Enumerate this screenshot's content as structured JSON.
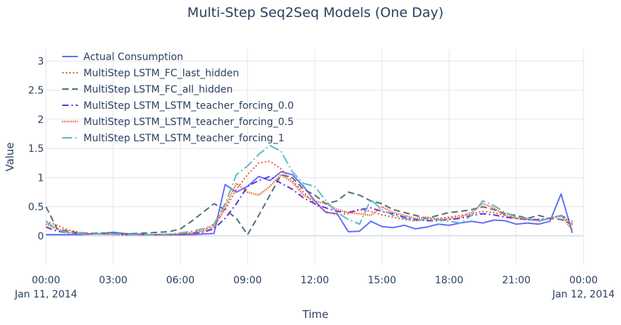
{
  "chart_data": {
    "type": "line",
    "title": "Multi-Step Seq2Seq Models (One Day)",
    "xlabel": "Time",
    "ylabel": "Value",
    "xlim": [
      "2014-01-11 00:00",
      "2014-01-12 00:00"
    ],
    "ylim": [
      -0.5,
      3.2
    ],
    "grid": true,
    "legend_position": "top-left",
    "x_ticks": [
      "00:00",
      "03:00",
      "06:00",
      "09:00",
      "12:00",
      "15:00",
      "18:00",
      "21:00",
      "00:00"
    ],
    "x_tick_dates": [
      "Jan 11, 2014",
      "",
      "",
      "",
      "",
      "",
      "",
      "",
      "Jan 12, 2014"
    ],
    "y_ticks": [
      "0",
      "0.5",
      "1",
      "1.5",
      "2",
      "2.5",
      "3"
    ],
    "y_tick_values": [
      0,
      0.5,
      1,
      1.5,
      2,
      2.5,
      3
    ],
    "x_hours": [
      0,
      0.5,
      1,
      1.5,
      2,
      2.5,
      3,
      3.5,
      4,
      4.5,
      5,
      5.5,
      6,
      6.5,
      7,
      7.5,
      8,
      8.5,
      9,
      9.5,
      10,
      10.5,
      11,
      11.5,
      12,
      12.5,
      13,
      13.5,
      14,
      14.5,
      15,
      15.5,
      16,
      16.5,
      17,
      17.5,
      18,
      18.5,
      19,
      19.5,
      20,
      20.5,
      21,
      21.5,
      22,
      22.5,
      23,
      23.5
    ],
    "series": [
      {
        "name": "Actual Consumption",
        "color": "#636efa",
        "dash": "solid",
        "values": [
          0.02,
          0.02,
          0.02,
          0.02,
          0.03,
          0.04,
          0.06,
          0.04,
          0.03,
          0.02,
          0.02,
          0.02,
          0.02,
          0.02,
          0.03,
          0.04,
          0.88,
          0.75,
          0.85,
          1.02,
          0.95,
          1.1,
          1.05,
          0.85,
          0.6,
          0.4,
          0.38,
          0.07,
          0.08,
          0.25,
          0.16,
          0.14,
          0.18,
          0.12,
          0.15,
          0.2,
          0.18,
          0.22,
          0.25,
          0.22,
          0.27,
          0.26,
          0.2,
          0.22,
          0.2,
          0.25,
          0.72,
          0.05
        ]
      },
      {
        "name": "MultiStep LSTM_FC_last_hidden",
        "color": "#ef553b",
        "dash": "dot",
        "values": [
          0.25,
          0.18,
          0.1,
          0.06,
          0.04,
          0.03,
          0.03,
          0.02,
          0.02,
          0.02,
          0.02,
          0.02,
          0.03,
          0.05,
          0.1,
          0.18,
          0.45,
          0.8,
          1.05,
          1.25,
          1.28,
          1.15,
          0.95,
          0.75,
          0.55,
          0.42,
          0.36,
          0.38,
          0.45,
          0.42,
          0.36,
          0.32,
          0.28,
          0.26,
          0.28,
          0.3,
          0.32,
          0.35,
          0.38,
          0.42,
          0.4,
          0.35,
          0.3,
          0.28,
          0.27,
          0.3,
          0.33,
          0.22
        ]
      },
      {
        "name": "MultiStep LSTM_FC_all_hidden",
        "color": "#4f6e7c",
        "dash": "dash",
        "values": [
          0.5,
          0.12,
          0.08,
          0.05,
          0.04,
          0.05,
          0.04,
          0.03,
          0.04,
          0.05,
          0.06,
          0.07,
          0.12,
          0.25,
          0.4,
          0.55,
          0.45,
          0.3,
          0.02,
          0.35,
          0.7,
          1.05,
          1.0,
          0.8,
          0.7,
          0.55,
          0.6,
          0.75,
          0.7,
          0.6,
          0.55,
          0.45,
          0.4,
          0.35,
          0.3,
          0.35,
          0.4,
          0.42,
          0.45,
          0.5,
          0.45,
          0.38,
          0.35,
          0.3,
          0.35,
          0.3,
          0.28,
          0.2
        ]
      },
      {
        "name": "MultiStep LSTM_LSTM_teacher_forcing_0.0",
        "color": "#5a35e3",
        "dash": "dashdot",
        "values": [
          0.15,
          0.08,
          0.05,
          0.04,
          0.03,
          0.03,
          0.03,
          0.02,
          0.02,
          0.02,
          0.02,
          0.02,
          0.02,
          0.04,
          0.06,
          0.12,
          0.3,
          0.55,
          0.85,
          0.95,
          1.02,
          0.9,
          0.8,
          0.65,
          0.55,
          0.48,
          0.42,
          0.4,
          0.45,
          0.48,
          0.42,
          0.38,
          0.32,
          0.28,
          0.26,
          0.26,
          0.28,
          0.3,
          0.35,
          0.38,
          0.36,
          0.32,
          0.3,
          0.28,
          0.28,
          0.3,
          0.35,
          0.25
        ]
      },
      {
        "name": "MultiStep LSTM_LSTM_teacher_forcing_0.5",
        "color": "#e8632d",
        "dash": "densedot",
        "values": [
          0.2,
          0.12,
          0.06,
          0.04,
          0.03,
          0.03,
          0.02,
          0.02,
          0.02,
          0.02,
          0.02,
          0.02,
          0.03,
          0.05,
          0.08,
          0.15,
          0.5,
          0.9,
          0.75,
          0.7,
          0.85,
          1.05,
          0.92,
          0.7,
          0.6,
          0.55,
          0.45,
          0.4,
          0.38,
          0.35,
          0.5,
          0.4,
          0.35,
          0.3,
          0.32,
          0.28,
          0.3,
          0.32,
          0.4,
          0.55,
          0.48,
          0.35,
          0.3,
          0.28,
          0.26,
          0.3,
          0.35,
          0.1
        ]
      },
      {
        "name": "MultiStep LSTM_LSTM_teacher_forcing_1",
        "color": "#5fb8c7",
        "dash": "longdashdot",
        "values": [
          0.25,
          0.1,
          0.05,
          0.04,
          0.03,
          0.03,
          0.03,
          0.02,
          0.02,
          0.02,
          0.02,
          0.03,
          0.05,
          0.08,
          0.12,
          0.2,
          0.55,
          1.05,
          1.2,
          1.4,
          1.55,
          1.45,
          1.1,
          0.9,
          0.85,
          0.6,
          0.4,
          0.28,
          0.2,
          0.62,
          0.45,
          0.35,
          0.3,
          0.25,
          0.3,
          0.28,
          0.25,
          0.22,
          0.35,
          0.6,
          0.52,
          0.4,
          0.32,
          0.3,
          0.25,
          0.3,
          0.35,
          0.18
        ]
      }
    ]
  }
}
